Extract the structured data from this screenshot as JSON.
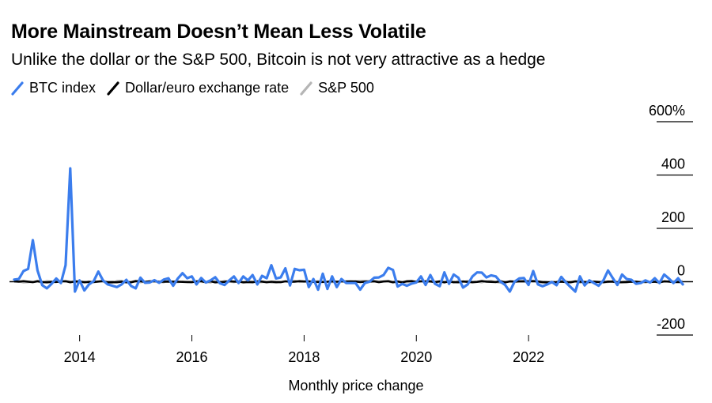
{
  "title": "More Mainstream Doesn’t Mean Less Volatile",
  "subtitle": "Unlike the dollar or the S&P 500, Bitcoin is not very attractive as a hedge",
  "colors": {
    "btc": "#3b7ded",
    "usd": "#000000",
    "spx": "#b5b5b5",
    "zero": "#000000",
    "grid": "#000000"
  },
  "chart_data": {
    "type": "line",
    "title": "More Mainstream Doesn’t Mean Less Volatile",
    "subtitle": "Unlike the dollar or the S&P 500, Bitcoin is not very attractive as a hedge",
    "xlabel": "Monthly price change",
    "ylabel": "",
    "xlim": [
      2012.75,
      2024.0
    ],
    "ylim": [
      -200,
      600
    ],
    "x_ticks": [
      2014,
      2016,
      2018,
      2020,
      2022
    ],
    "x_tick_labels": [
      "2014",
      "2016",
      "2018",
      "2020",
      "2022"
    ],
    "y_ticks": [
      -200,
      0,
      200,
      400,
      600
    ],
    "y_tick_labels": [
      "-200",
      "0",
      "200",
      "400",
      "600%"
    ],
    "legend_position": "top-left",
    "grid": "horizontal",
    "series": [
      {
        "name": "BTC index",
        "x_start": 2012.833,
        "x_step": 0.08333,
        "values": [
          8,
          10,
          40,
          48,
          156,
          42,
          -13,
          -25,
          -8,
          12,
          -5,
          62,
          425,
          -37,
          5,
          -33,
          -10,
          2,
          38,
          5,
          -10,
          -15,
          -20,
          -10,
          7,
          -16,
          -25,
          15,
          -4,
          -3,
          6,
          -4,
          8,
          13,
          -15,
          12,
          32,
          13,
          20,
          -10,
          14,
          -3,
          5,
          17,
          -6,
          -12,
          5,
          20,
          -5,
          20,
          5,
          25,
          -10,
          22,
          13,
          62,
          12,
          16,
          50,
          -14,
          48,
          43,
          45,
          -20,
          10,
          -30,
          30,
          -27,
          20,
          -20,
          10,
          -5,
          -5,
          -5,
          -30,
          -5,
          0,
          15,
          16,
          25,
          52,
          44,
          -18,
          -8,
          -15,
          -7,
          -3,
          20,
          -12,
          25,
          -8,
          -17,
          35,
          -8,
          27,
          15,
          -22,
          -10,
          20,
          35,
          34,
          16,
          24,
          20,
          0,
          -12,
          -37,
          0,
          12,
          14,
          -12,
          40,
          -10,
          -17,
          -10,
          -1,
          -13,
          18,
          -3,
          -20,
          -37,
          20,
          -14,
          5,
          -5,
          -15,
          5,
          42,
          14,
          -12,
          27,
          10,
          7,
          -8,
          -5,
          5,
          -3,
          13,
          -5,
          27,
          12,
          -5,
          13,
          -10
        ]
      },
      {
        "name": "Dollar/euro exchange rate"
      },
      {
        "name": "S&P 500"
      }
    ]
  }
}
